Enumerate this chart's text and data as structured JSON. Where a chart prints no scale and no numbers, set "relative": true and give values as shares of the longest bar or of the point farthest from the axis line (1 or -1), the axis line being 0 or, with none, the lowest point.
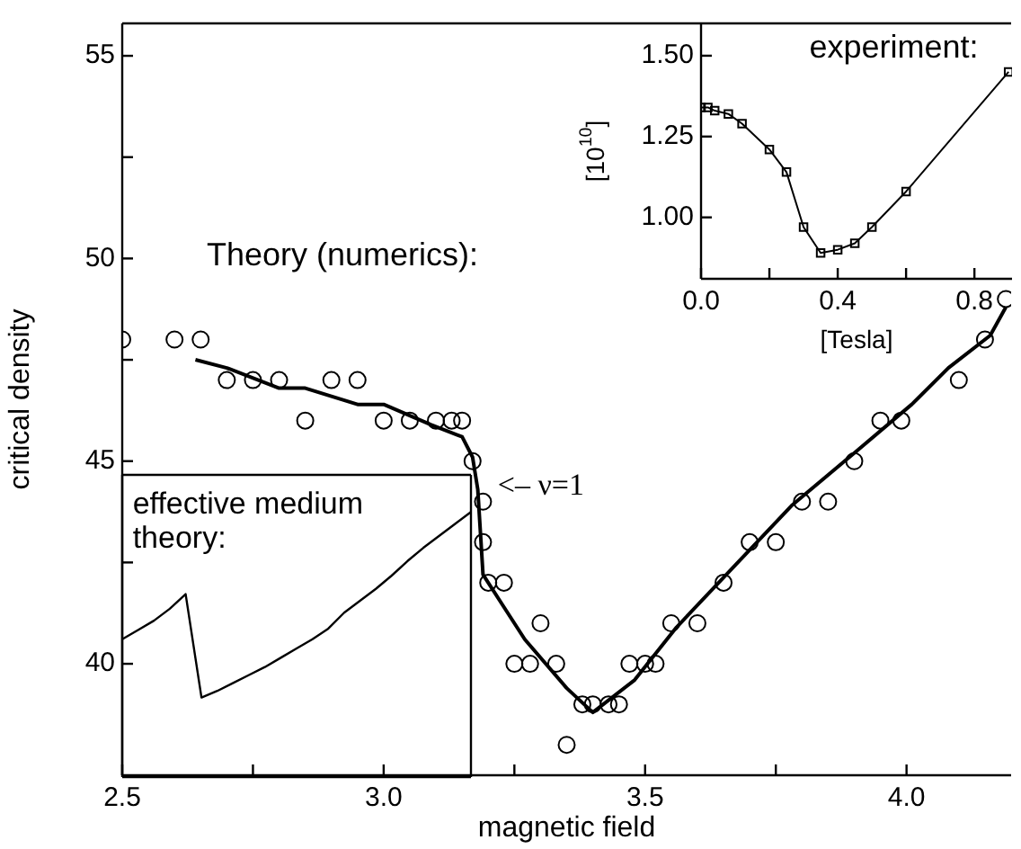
{
  "chart_data": [
    {
      "type": "scatter",
      "xlabel": "magnetic field",
      "ylabel": "critical density",
      "xlim": [
        2.5,
        4.2
      ],
      "ylim": [
        37.25,
        55.8
      ],
      "xticks": [
        2.5,
        {
          "value": 2.75,
          "label": null
        },
        {
          "value": 3,
          "label": "3.0"
        },
        {
          "value": 3.25,
          "label": null
        },
        3.5,
        {
          "value": 3.75,
          "label": null
        },
        {
          "value": 4,
          "label": "4.0"
        }
      ],
      "yticks": [
        40,
        {
          "value": 42.5,
          "label": null
        },
        45,
        {
          "value": 47.5,
          "label": null
        },
        50,
        {
          "value": 52.5,
          "label": null
        },
        55
      ],
      "series": [
        {
          "type": "scatter",
          "marker": "circle",
          "color": "#000000",
          "x": [
            2.5,
            2.6,
            2.65,
            2.7,
            2.75,
            2.8,
            2.85,
            2.9,
            2.95,
            3.0,
            3.05,
            3.1,
            3.13,
            3.15,
            3.17,
            3.19,
            3.19,
            3.2,
            3.23,
            3.25,
            3.28,
            3.3,
            3.33,
            3.35,
            3.38,
            3.4,
            3.43,
            3.45,
            3.47,
            3.5,
            3.52,
            3.55,
            3.6,
            3.65,
            3.7,
            3.75,
            3.8,
            3.85,
            3.9,
            3.95,
            3.99,
            4.1,
            4.15,
            4.19
          ],
          "values": [
            48,
            48,
            48,
            47,
            47,
            47,
            46,
            47,
            47,
            46,
            46,
            46,
            46,
            46,
            45,
            44,
            43,
            42,
            42,
            40,
            40,
            41,
            40,
            38,
            39,
            39,
            39,
            39,
            40,
            40,
            40,
            41,
            41,
            42,
            43,
            43,
            44,
            44,
            45,
            46,
            46,
            47,
            48,
            49
          ]
        },
        {
          "type": "line",
          "color": "#000000",
          "x": [
            2.64,
            2.7,
            2.8,
            2.85,
            2.95,
            3.0,
            3.09,
            3.15,
            3.17,
            3.18,
            3.19,
            3.23,
            3.27,
            3.35,
            3.4,
            3.48,
            3.56,
            3.67,
            3.78,
            3.9,
            4.01,
            4.08,
            4.16,
            4.19
          ],
          "values": [
            47.5,
            47.3,
            46.8,
            46.8,
            46.4,
            46.4,
            45.9,
            45.6,
            45.1,
            44.3,
            42.2,
            41.4,
            40.6,
            39.4,
            38.8,
            39.6,
            40.9,
            42.4,
            43.9,
            45.2,
            46.4,
            47.3,
            48.1,
            48.8
          ]
        }
      ],
      "annotations": [
        "Theory (numerics):",
        {
          "text": "<– ν=1",
          "x": 3.17,
          "y": 45
        }
      ]
    },
    {
      "type": "line",
      "marker": "square",
      "color": "#000000",
      "xlabel": "[Tesla]",
      "ylabel": "[10$^{10}$]",
      "xlim": [
        0,
        0.91
      ],
      "ylim": [
        0.81,
        1.6
      ],
      "xticks": [
        {
          "value": 0,
          "label": "0.0"
        },
        {
          "value": 0.2,
          "label": null
        },
        {
          "value": 0.4,
          "label": "0.4"
        },
        {
          "value": 0.6,
          "label": null
        },
        {
          "value": 0.8,
          "label": "0.8"
        }
      ],
      "yticks": [
        {
          "value": 1,
          "label": "1.00"
        },
        {
          "value": 1.25,
          "label": "1.25"
        },
        {
          "value": 1.5,
          "label": "1.50"
        }
      ],
      "x": [
        0,
        0.02,
        0.04,
        0.08,
        0.12,
        0.2,
        0.25,
        0.3,
        0.35,
        0.4,
        0.45,
        0.5,
        0.6,
        0.9
      ],
      "values": [
        1.34,
        1.34,
        1.33,
        1.32,
        1.29,
        1.21,
        1.14,
        0.97,
        0.89,
        0.9,
        0.92,
        0.97,
        1.08,
        1.45
      ],
      "annotations": [
        "experiment:"
      ]
    },
    {
      "type": "line",
      "relative": true,
      "color": "#000000",
      "categories": [
        null,
        null,
        null,
        null,
        null,
        null,
        null,
        null,
        null,
        null,
        null,
        null,
        null,
        null,
        null,
        null,
        null,
        null,
        null,
        null,
        null,
        null,
        null
      ],
      "values": [
        0.52,
        0.555,
        0.59,
        0.635,
        0.69,
        0.3,
        0.325,
        0.355,
        0.385,
        0.415,
        0.45,
        0.485,
        0.52,
        0.56,
        0.62,
        0.665,
        0.71,
        0.76,
        0.815,
        0.865,
        0.91,
        0.955,
        1.0
      ],
      "annotations": [
        "effective medium theory:"
      ]
    }
  ]
}
